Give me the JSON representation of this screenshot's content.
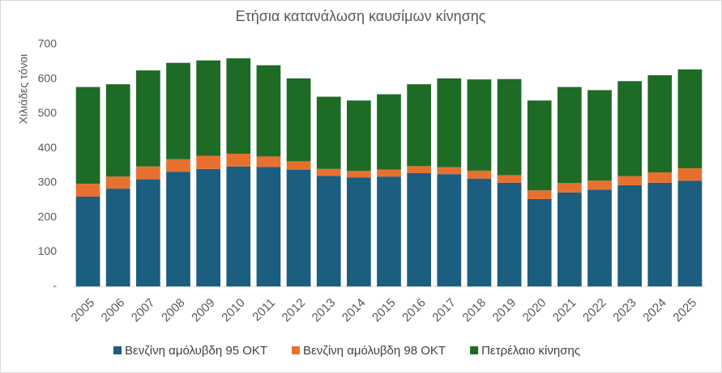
{
  "chart_data": {
    "type": "stacked-bar",
    "title": "Ετήσια κατανάλωση καυσίμων κίνησης",
    "y_label": "Χιλιάδες τόνοι",
    "categories": [
      "2005",
      "2006",
      "2007",
      "2008",
      "2009",
      "2010",
      "2011",
      "2012",
      "2013",
      "2014",
      "2015",
      "2016",
      "2017",
      "2018",
      "2019",
      "2020",
      "2021",
      "2022",
      "2023",
      "2024",
      "2025"
    ],
    "series": [
      {
        "name": "Βενζίνη αμόλυβδη 95 ΟΚΤ",
        "color": "#1b5e80",
        "values": [
          260,
          283,
          310,
          332,
          340,
          347,
          346,
          338,
          320,
          315,
          318,
          328,
          325,
          312,
          300,
          253,
          272,
          280,
          293,
          300,
          306
        ]
      },
      {
        "name": "Βενζίνη αμόλυβδη 98 ΟΚΤ",
        "color": "#e8702f",
        "values": [
          37,
          35,
          37,
          36,
          38,
          37,
          30,
          24,
          20,
          19,
          20,
          20,
          20,
          23,
          22,
          25,
          27,
          26,
          26,
          30,
          36
        ]
      },
      {
        "name": "Πετρέλαιο κίνησης",
        "color": "#1e6b26",
        "values": [
          280,
          267,
          278,
          279,
          276,
          276,
          264,
          240,
          209,
          204,
          218,
          237,
          257,
          264,
          278,
          260,
          278,
          262,
          275,
          281,
          286
        ]
      }
    ],
    "ylim": [
      0,
      700
    ],
    "yticks": [
      {
        "value": 0,
        "label": "-"
      },
      100,
      200,
      300,
      400,
      500,
      600,
      700
    ],
    "grid": false
  }
}
